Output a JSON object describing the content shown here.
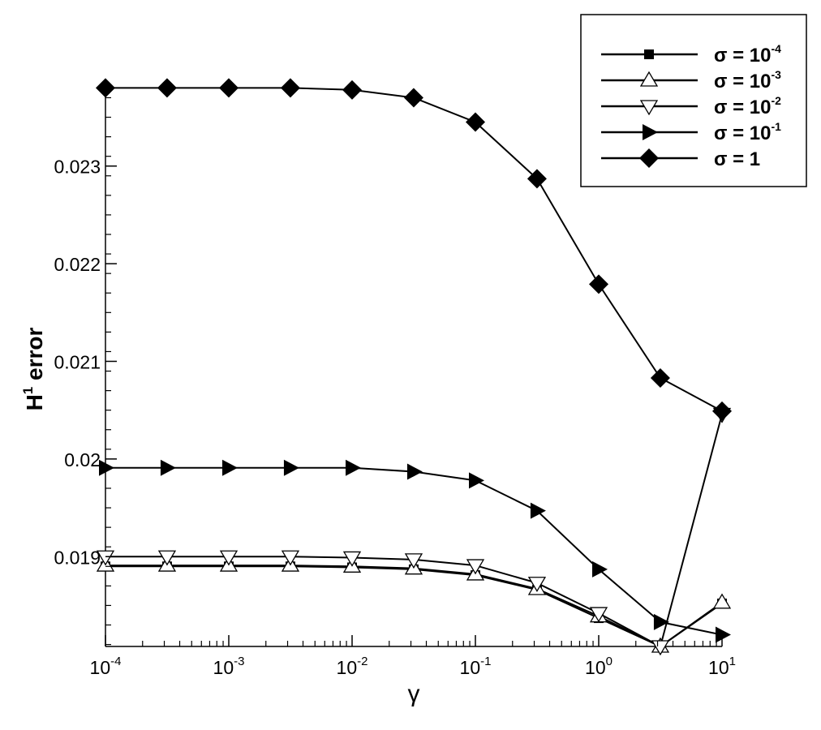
{
  "chart_data": {
    "type": "line",
    "title": "",
    "xlabel": "γ",
    "ylabel": "H",
    "ylabel_superscript": "1",
    "ylabel_rest": " error",
    "x_scale": "log",
    "x": [
      0.0001,
      0.000316,
      0.001,
      0.00316,
      0.01,
      0.0316,
      0.1,
      0.316,
      1,
      3.16,
      10
    ],
    "xlim": [
      0.0001,
      10
    ],
    "ylim": [
      0.01808,
      0.02387
    ],
    "x_ticks": [
      {
        "value": 0.0001,
        "base": "10",
        "exp": "-4"
      },
      {
        "value": 0.001,
        "base": "10",
        "exp": "-3"
      },
      {
        "value": 0.01,
        "base": "10",
        "exp": "-2"
      },
      {
        "value": 0.1,
        "base": "10",
        "exp": "-1"
      },
      {
        "value": 1,
        "base": "10",
        "exp": "0"
      },
      {
        "value": 10,
        "base": "10",
        "exp": "1"
      }
    ],
    "y_ticks": [
      {
        "value": 0.019,
        "label": "0.019"
      },
      {
        "value": 0.02,
        "label": "0.02"
      },
      {
        "value": 0.021,
        "label": "0.021"
      },
      {
        "value": 0.022,
        "label": "0.022"
      },
      {
        "value": 0.023,
        "label": "0.023"
      }
    ],
    "grid": false,
    "legend_position": "top-right",
    "series": [
      {
        "name": "σ = 10",
        "name_exp": "-4",
        "marker": "square",
        "values": [
          0.0189,
          0.0189,
          0.0189,
          0.0189,
          0.01889,
          0.01887,
          0.01881,
          0.01866,
          0.01837,
          0.01808,
          0.01852
        ]
      },
      {
        "name": "σ = 10",
        "name_exp": "-3",
        "marker": "triangle-up",
        "values": [
          0.01891,
          0.01891,
          0.01891,
          0.01891,
          0.0189,
          0.01888,
          0.01882,
          0.01867,
          0.01839,
          0.01808,
          0.01853
        ]
      },
      {
        "name": "σ = 10",
        "name_exp": "-2",
        "marker": "triangle-down",
        "values": [
          0.019,
          0.019,
          0.019,
          0.019,
          0.01899,
          0.01897,
          0.01891,
          0.01873,
          0.01842,
          0.01808,
          0.02046
        ]
      },
      {
        "name": "σ = 10",
        "name_exp": "-1",
        "marker": "triangle-right",
        "values": [
          0.01991,
          0.01991,
          0.01991,
          0.01991,
          0.01991,
          0.01987,
          0.01978,
          0.01947,
          0.01887,
          0.01833,
          0.0182
        ]
      },
      {
        "name": "σ = 1",
        "name_exp": "",
        "marker": "diamond",
        "values": [
          0.0238,
          0.0238,
          0.0238,
          0.0238,
          0.02378,
          0.0237,
          0.02345,
          0.02287,
          0.02179,
          0.02083,
          0.02049
        ]
      }
    ]
  }
}
